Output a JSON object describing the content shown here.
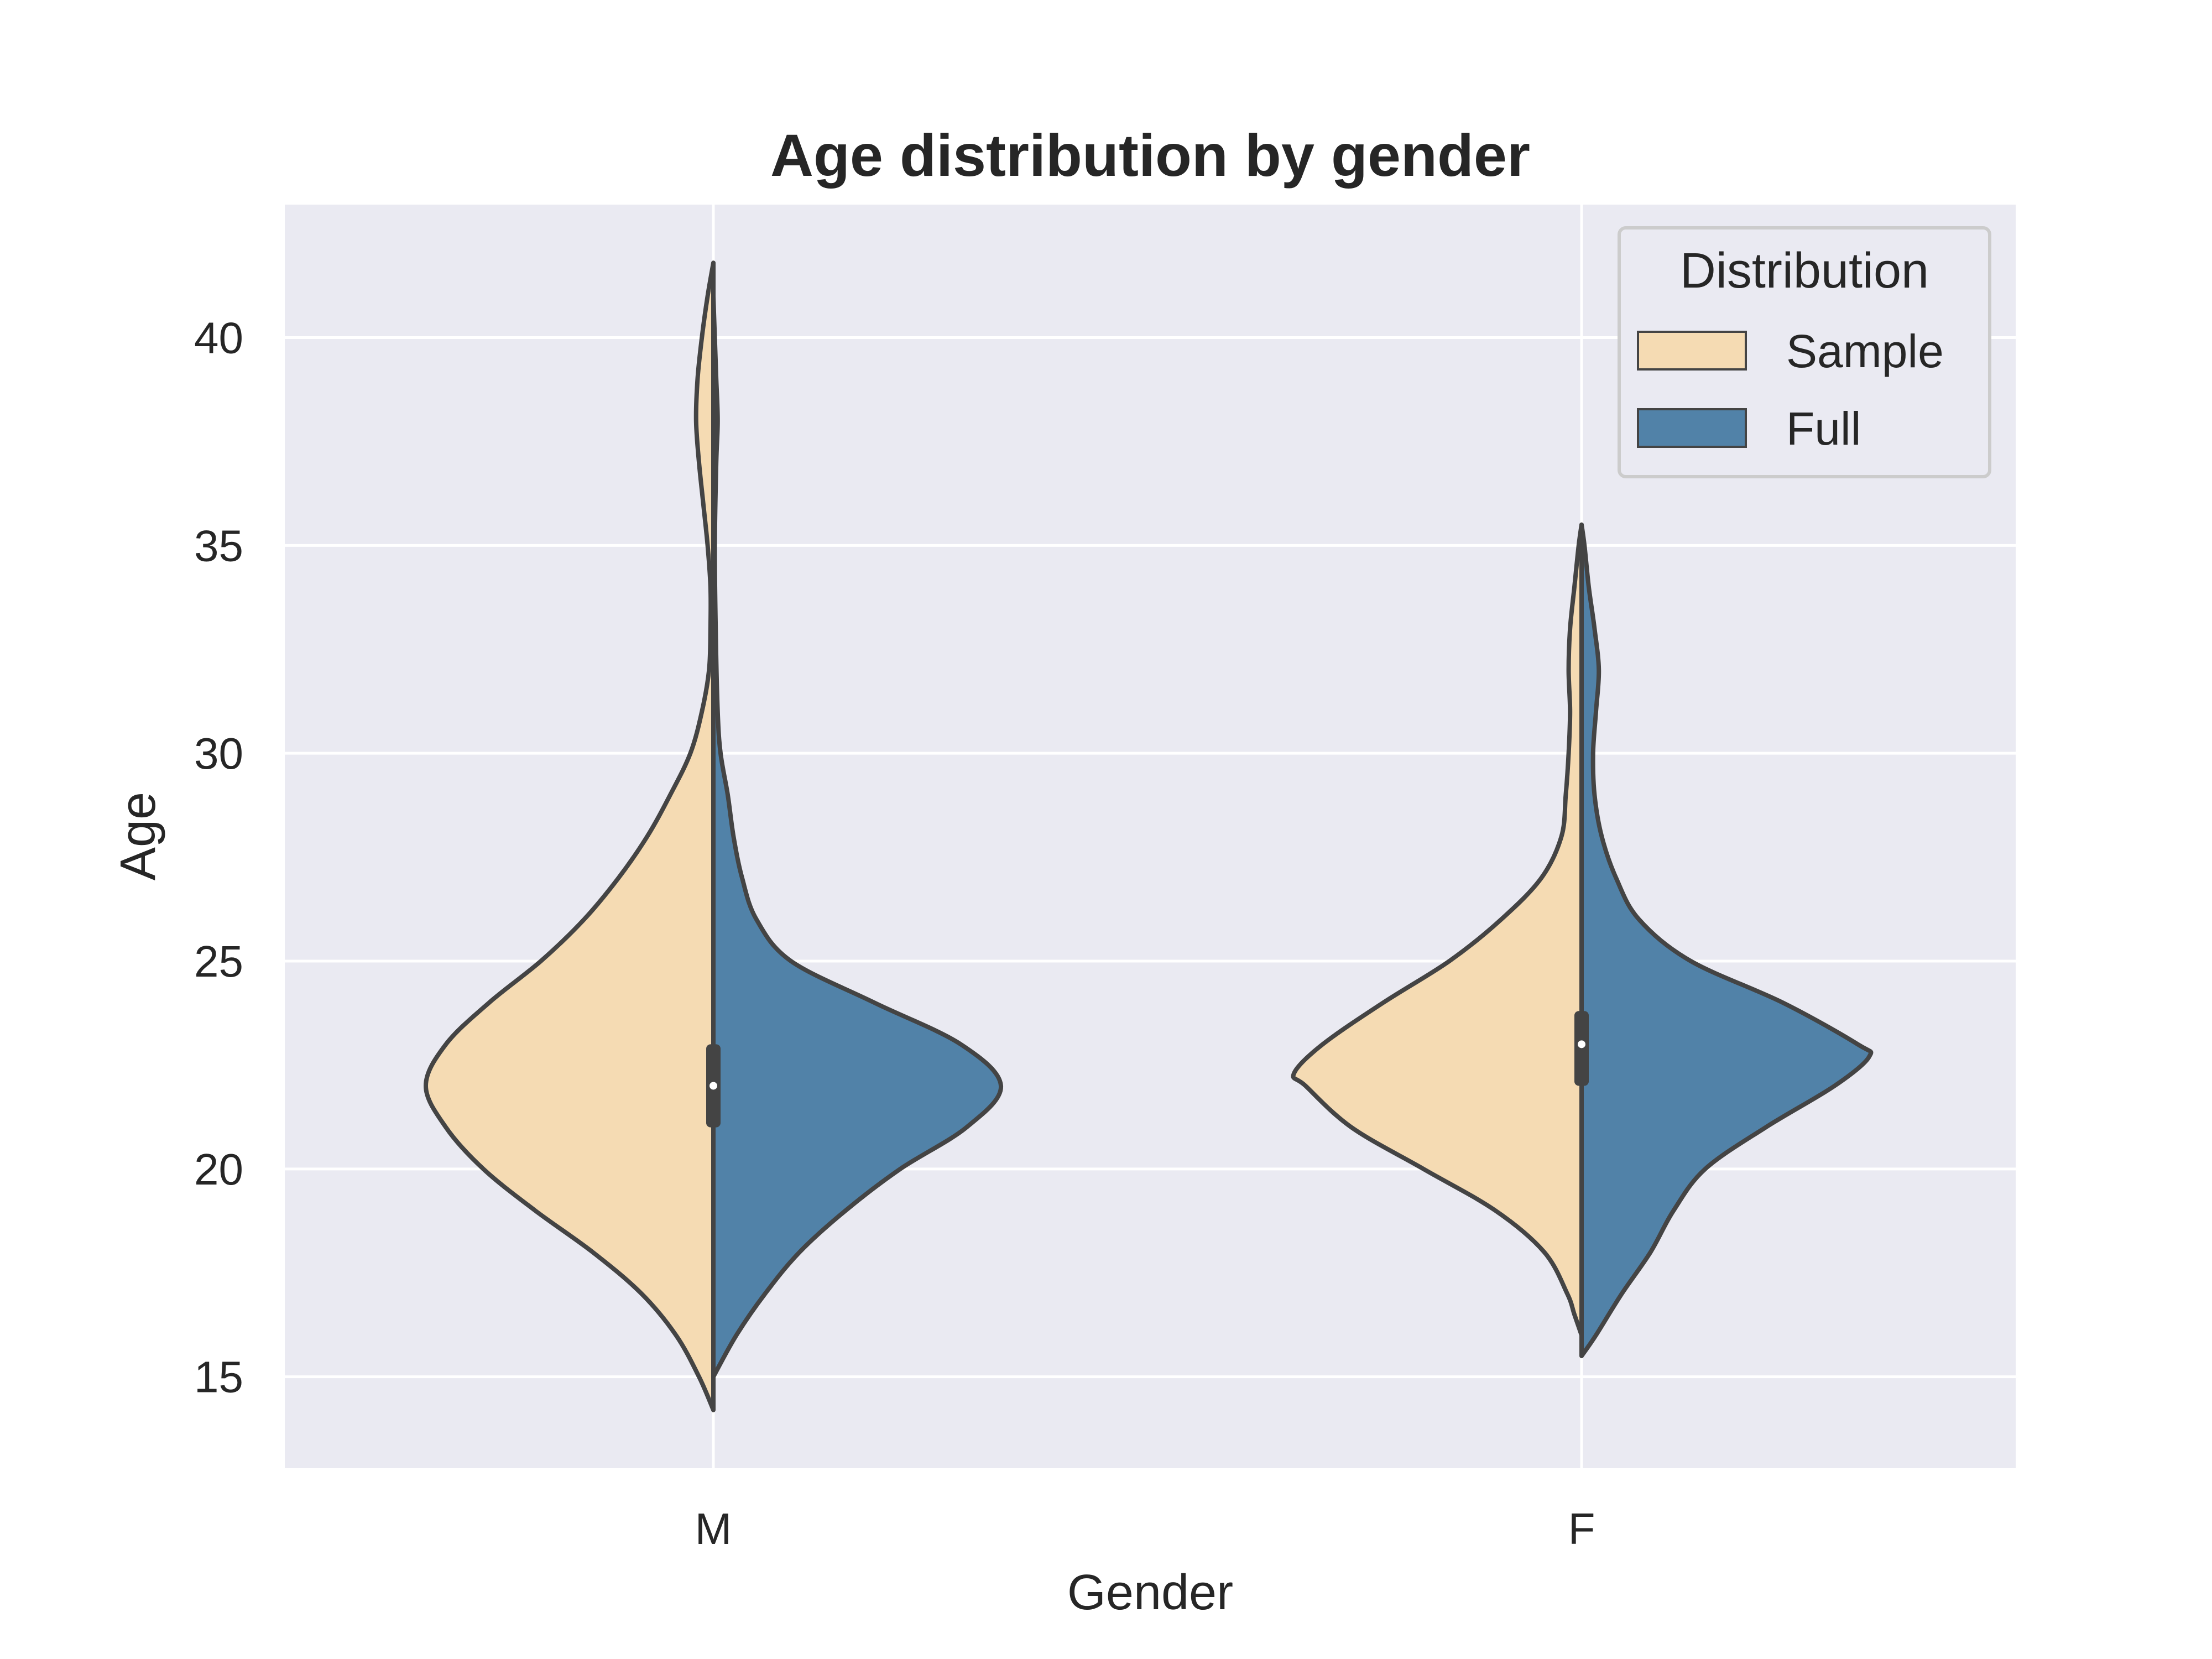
{
  "chart_data": {
    "type": "violin",
    "title": "Age distribution by gender",
    "xlabel": "Gender",
    "ylabel": "Age",
    "ylim": [
      12.8,
      43.2
    ],
    "yticks": [
      15,
      20,
      25,
      30,
      35,
      40
    ],
    "categories": [
      "M",
      "F"
    ],
    "grid": true,
    "legend": {
      "title": "Distribution",
      "placement": "top-right",
      "entries": [
        "Sample",
        "Full"
      ]
    },
    "series": [
      {
        "name": "Sample",
        "side": "left",
        "color": "#f5dbb3",
        "violins": [
          {
            "category": "M",
            "density": [
              [
                14.2,
                0.0
              ],
              [
                15,
                0.05
              ],
              [
                16,
                0.13
              ],
              [
                17,
                0.25
              ],
              [
                18,
                0.42
              ],
              [
                19,
                0.62
              ],
              [
                20,
                0.8
              ],
              [
                21,
                0.93
              ],
              [
                22,
                1.0
              ],
              [
                23,
                0.93
              ],
              [
                24,
                0.78
              ],
              [
                25,
                0.6
              ],
              [
                26,
                0.45
              ],
              [
                27,
                0.33
              ],
              [
                28,
                0.23
              ],
              [
                29,
                0.15
              ],
              [
                30,
                0.08
              ],
              [
                31,
                0.04
              ],
              [
                32,
                0.015
              ],
              [
                33,
                0.01
              ],
              [
                34,
                0.01
              ],
              [
                35,
                0.02
              ],
              [
                36,
                0.035
              ],
              [
                37,
                0.05
              ],
              [
                38,
                0.06
              ],
              [
                39,
                0.055
              ],
              [
                40,
                0.04
              ],
              [
                41,
                0.02
              ],
              [
                41.8,
                0.0
              ]
            ]
          },
          {
            "category": "F",
            "density": [
              [
                16,
                0.0
              ],
              [
                16.5,
                0.025
              ],
              [
                17,
                0.05
              ],
              [
                18,
                0.13
              ],
              [
                19,
                0.3
              ],
              [
                20,
                0.55
              ],
              [
                21,
                0.8
              ],
              [
                22,
                0.96
              ],
              [
                22.3,
                1.0
              ],
              [
                23,
                0.9
              ],
              [
                24,
                0.69
              ],
              [
                25,
                0.46
              ],
              [
                26,
                0.28
              ],
              [
                27,
                0.14
              ],
              [
                28,
                0.07
              ],
              [
                29,
                0.055
              ],
              [
                30,
                0.045
              ],
              [
                31,
                0.04
              ],
              [
                32,
                0.045
              ],
              [
                33,
                0.04
              ],
              [
                34,
                0.025
              ],
              [
                35,
                0.01
              ],
              [
                35.5,
                0.0
              ]
            ]
          }
        ]
      },
      {
        "name": "Full",
        "side": "right",
        "color": "#5182a8",
        "violins": [
          {
            "category": "M",
            "density": [
              [
                15,
                0.0
              ],
              [
                16,
                0.08
              ],
              [
                17,
                0.18
              ],
              [
                18,
                0.3
              ],
              [
                19,
                0.46
              ],
              [
                20,
                0.65
              ],
              [
                21,
                0.88
              ],
              [
                22,
                1.0
              ],
              [
                23,
                0.86
              ],
              [
                24,
                0.56
              ],
              [
                25,
                0.27
              ],
              [
                26,
                0.15
              ],
              [
                27,
                0.1
              ],
              [
                28,
                0.07
              ],
              [
                29,
                0.05
              ],
              [
                30,
                0.025
              ],
              [
                31,
                0.015
              ],
              [
                33,
                0.008
              ],
              [
                35,
                0.005
              ],
              [
                37,
                0.01
              ],
              [
                38,
                0.015
              ],
              [
                39,
                0.01
              ],
              [
                40,
                0.005
              ],
              [
                41,
                0.0
              ]
            ]
          },
          {
            "category": "F",
            "density": [
              [
                15.5,
                0.0
              ],
              [
                16,
                0.05
              ],
              [
                17,
                0.14
              ],
              [
                18,
                0.24
              ],
              [
                19,
                0.32
              ],
              [
                20,
                0.43
              ],
              [
                21,
                0.64
              ],
              [
                22,
                0.88
              ],
              [
                22.7,
                1.0
              ],
              [
                23,
                0.96
              ],
              [
                24,
                0.7
              ],
              [
                25,
                0.38
              ],
              [
                26,
                0.2
              ],
              [
                27,
                0.12
              ],
              [
                28,
                0.07
              ],
              [
                29,
                0.045
              ],
              [
                30,
                0.04
              ],
              [
                31,
                0.05
              ],
              [
                32,
                0.06
              ],
              [
                33,
                0.045
              ],
              [
                34,
                0.025
              ],
              [
                35,
                0.01
              ],
              [
                35.5,
                0.0
              ]
            ]
          }
        ]
      }
    ],
    "box_summaries": [
      {
        "category": "M",
        "median": 22,
        "q1": 21,
        "q3": 23
      },
      {
        "category": "F",
        "median": 23,
        "q1": 22,
        "q3": 23.8
      }
    ]
  }
}
